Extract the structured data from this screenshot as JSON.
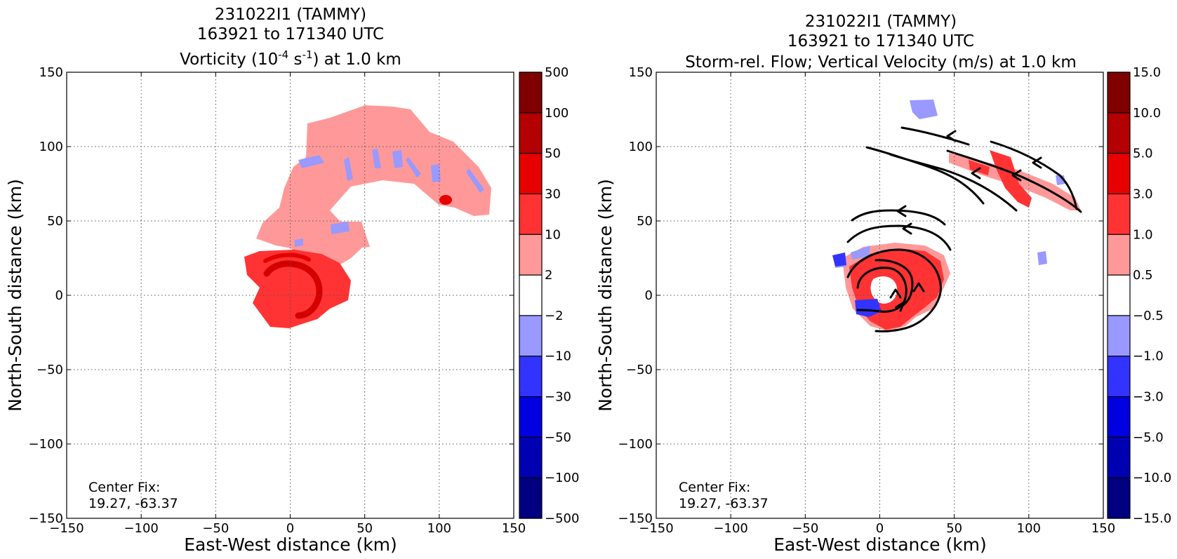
{
  "chart_data": [
    {
      "type": "heatmap",
      "title_lines": [
        "231022I1 (TAMMY)",
        "163921 to 171340 UTC"
      ],
      "title_var": {
        "pre": "Vorticity (10",
        "sup1": "-4",
        "mid": " s",
        "sup2": "-1",
        "post": ") at 1.0 km"
      },
      "xlabel": "East-West distance (km)",
      "ylabel": "North-South distance (km)",
      "xlim": [
        -150,
        150
      ],
      "ylim": [
        -150,
        150
      ],
      "xticks": [
        -150,
        -100,
        -50,
        0,
        50,
        100,
        150
      ],
      "yticks": [
        -150,
        -100,
        -50,
        0,
        50,
        100,
        150
      ],
      "grid": true,
      "annotation": [
        "Center Fix:",
        "19.27, -63.37"
      ],
      "colorbar": {
        "levels": [
          "-500",
          "-100",
          "-50",
          "-30",
          "-10",
          "-2",
          "2",
          "10",
          "30",
          "50",
          "100",
          "500"
        ],
        "colors": [
          "#000080",
          "#0000b3",
          "#0000e0",
          "#3333ff",
          "#9999ff",
          "#ffffff",
          "#ff9999",
          "#ff3333",
          "#e60000",
          "#b30000",
          "#800000"
        ]
      }
    },
    {
      "type": "heatmap",
      "title_lines": [
        "231022I1 (TAMMY)",
        "163921 to 171340 UTC",
        "Storm-rel. Flow; Vertical Velocity (m/s) at 1.0 km"
      ],
      "xlabel": "East-West distance (km)",
      "ylabel": "North-South distance (km)",
      "xlim": [
        -150,
        150
      ],
      "ylim": [
        -150,
        150
      ],
      "xticks": [
        -150,
        -100,
        -50,
        0,
        50,
        100,
        150
      ],
      "yticks": [
        -150,
        -100,
        -50,
        0,
        50,
        100,
        150
      ],
      "grid": true,
      "annotation": [
        "Center Fix:",
        "19.27, -63.37"
      ],
      "colorbar": {
        "levels": [
          "-15.0",
          "-10.0",
          "-5.0",
          "-3.0",
          "-1.0",
          "-0.5",
          "0.5",
          "1.0",
          "3.0",
          "5.0",
          "10.0",
          "15.0"
        ],
        "colors": [
          "#000080",
          "#0000b3",
          "#0000e0",
          "#3333ff",
          "#9999ff",
          "#ffffff",
          "#ff9999",
          "#ff3333",
          "#e60000",
          "#b30000",
          "#800000"
        ]
      }
    }
  ]
}
